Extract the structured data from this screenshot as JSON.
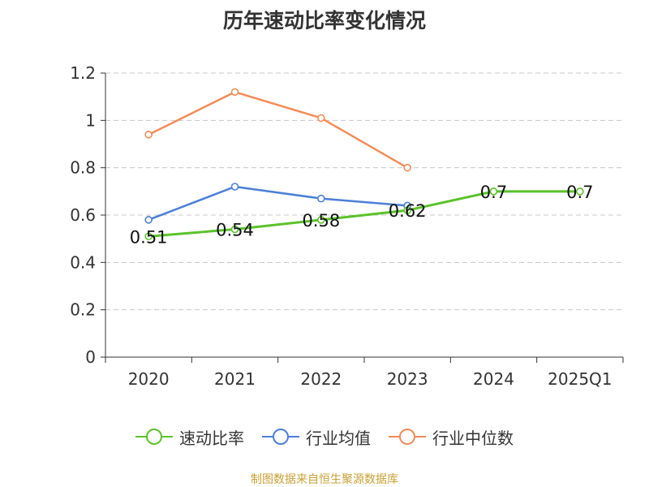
{
  "title": "历年速动比率变化情况",
  "source": "制图数据来自恒生聚源数据库",
  "chart_data": {
    "type": "line",
    "title": "历年速动比率变化情况",
    "categories": [
      "2020",
      "2021",
      "2022",
      "2023",
      "2024",
      "2025Q1"
    ],
    "ylim": [
      0,
      1.2
    ],
    "yticks": [
      "0",
      "0.2",
      "0.4",
      "0.6",
      "0.8",
      "1",
      "1.2"
    ],
    "grid": true,
    "legend_position": "bottom",
    "series": [
      {
        "name": "速动比率",
        "color": "#5bc22a",
        "values": [
          0.51,
          0.54,
          0.58,
          0.62,
          0.7,
          0.7
        ],
        "labels": [
          "0.51",
          "0.54",
          "0.58",
          "0.62",
          "0.7",
          "0.7"
        ]
      },
      {
        "name": "行业均值",
        "color": "#4b7fd8",
        "values": [
          0.58,
          0.72,
          0.67,
          0.64,
          null,
          null
        ]
      },
      {
        "name": "行业中位数",
        "color": "#f48b58",
        "values": [
          0.94,
          1.12,
          1.01,
          0.8,
          null,
          null
        ]
      }
    ]
  }
}
